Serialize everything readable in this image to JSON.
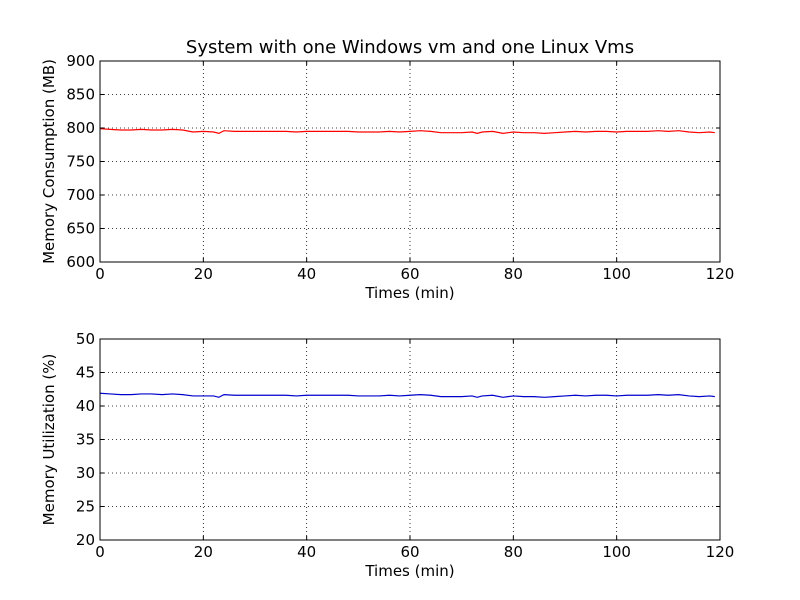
{
  "figure": {
    "title": "System with one Windows vm and one Linux Vms"
  },
  "chart_data": [
    {
      "type": "line",
      "xlabel": "Times (min)",
      "ylabel": "Memory Consumption (MB)",
      "xlim": [
        0,
        120
      ],
      "ylim": [
        600,
        900
      ],
      "xticks": [
        0,
        20,
        40,
        60,
        80,
        100,
        120
      ],
      "yticks": [
        600,
        650,
        700,
        750,
        800,
        850,
        900
      ],
      "grid": true,
      "series": [
        {
          "color": "#ff0000",
          "x": [
            0,
            2,
            4,
            6,
            8,
            10,
            12,
            14,
            16,
            18,
            20,
            22,
            23,
            24,
            26,
            28,
            30,
            32,
            34,
            36,
            38,
            40,
            42,
            44,
            46,
            48,
            50,
            52,
            54,
            56,
            58,
            60,
            62,
            64,
            66,
            68,
            70,
            72,
            73,
            74,
            76,
            78,
            79,
            80,
            82,
            84,
            86,
            88,
            90,
            92,
            94,
            96,
            98,
            100,
            102,
            104,
            106,
            108,
            110,
            112,
            114,
            116,
            118,
            119
          ],
          "values": [
            799,
            798,
            797,
            797,
            798,
            797,
            797,
            798,
            797,
            794,
            795,
            794,
            792,
            796,
            795,
            795,
            795,
            795,
            795,
            795,
            794,
            795,
            795,
            795,
            795,
            795,
            794,
            794,
            794,
            795,
            794,
            795,
            796,
            795,
            793,
            793,
            793,
            794,
            792,
            794,
            795,
            792,
            793,
            794,
            793,
            793,
            792,
            793,
            794,
            795,
            794,
            795,
            795,
            794,
            795,
            795,
            795,
            796,
            795,
            796,
            794,
            793,
            794,
            793
          ]
        }
      ]
    },
    {
      "type": "line",
      "xlabel": "Times (min)",
      "ylabel": "Memory Utilization (%)",
      "xlim": [
        0,
        120
      ],
      "ylim": [
        20,
        50
      ],
      "xticks": [
        0,
        20,
        40,
        60,
        80,
        100,
        120
      ],
      "yticks": [
        20,
        25,
        30,
        35,
        40,
        45,
        50
      ],
      "grid": true,
      "series": [
        {
          "color": "#0000cc",
          "x": [
            0,
            2,
            4,
            6,
            8,
            10,
            12,
            14,
            16,
            18,
            20,
            22,
            23,
            24,
            26,
            28,
            30,
            32,
            34,
            36,
            38,
            40,
            42,
            44,
            46,
            48,
            50,
            52,
            54,
            56,
            58,
            60,
            62,
            64,
            66,
            68,
            70,
            72,
            73,
            74,
            76,
            78,
            79,
            80,
            82,
            84,
            86,
            88,
            90,
            92,
            94,
            96,
            98,
            100,
            102,
            104,
            106,
            108,
            110,
            112,
            114,
            116,
            118,
            119
          ],
          "values": [
            41.9,
            41.8,
            41.7,
            41.7,
            41.8,
            41.8,
            41.7,
            41.8,
            41.7,
            41.5,
            41.5,
            41.5,
            41.3,
            41.7,
            41.6,
            41.6,
            41.6,
            41.6,
            41.6,
            41.6,
            41.5,
            41.6,
            41.6,
            41.6,
            41.6,
            41.6,
            41.5,
            41.5,
            41.5,
            41.6,
            41.5,
            41.6,
            41.7,
            41.6,
            41.4,
            41.4,
            41.4,
            41.5,
            41.3,
            41.5,
            41.6,
            41.3,
            41.4,
            41.5,
            41.4,
            41.4,
            41.3,
            41.4,
            41.5,
            41.6,
            41.5,
            41.6,
            41.6,
            41.5,
            41.6,
            41.6,
            41.6,
            41.7,
            41.6,
            41.7,
            41.5,
            41.4,
            41.5,
            41.4
          ]
        }
      ]
    }
  ]
}
